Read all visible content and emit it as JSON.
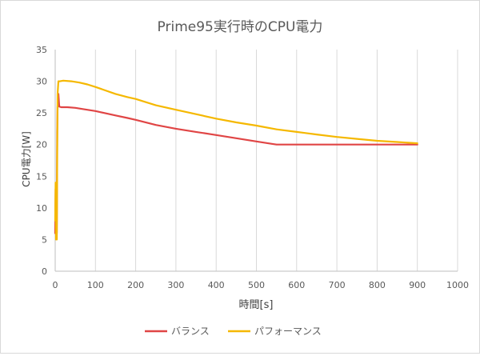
{
  "chart_data": {
    "type": "line",
    "title": "Prime95実行時のCPU電力",
    "xlabel": "時間[s]",
    "ylabel": "CPU電力[W]",
    "xlim": [
      0,
      1000
    ],
    "ylim": [
      0,
      35
    ],
    "x_ticks": [
      "0",
      "100",
      "200",
      "300",
      "400",
      "500",
      "600",
      "700",
      "800",
      "900",
      "1000"
    ],
    "y_ticks": [
      "0",
      "5",
      "10",
      "15",
      "20",
      "25",
      "30",
      "35"
    ],
    "grid": "vertical",
    "legend_position": "bottom",
    "series": [
      {
        "name": "バランス",
        "color": "#e04545",
        "points": [
          [
            0,
            6
          ],
          [
            1,
            13
          ],
          [
            2,
            7
          ],
          [
            3,
            11
          ],
          [
            4,
            6
          ],
          [
            5,
            22
          ],
          [
            6,
            26
          ],
          [
            8,
            28
          ],
          [
            10,
            26
          ],
          [
            15,
            25.9
          ],
          [
            30,
            25.9
          ],
          [
            50,
            25.8
          ],
          [
            70,
            25.6
          ],
          [
            100,
            25.3
          ],
          [
            150,
            24.6
          ],
          [
            180,
            24.2
          ],
          [
            200,
            23.9
          ],
          [
            250,
            23.1
          ],
          [
            300,
            22.5
          ],
          [
            350,
            22
          ],
          [
            400,
            21.5
          ],
          [
            450,
            21
          ],
          [
            500,
            20.5
          ],
          [
            540,
            20.1
          ],
          [
            550,
            20
          ],
          [
            600,
            20
          ],
          [
            700,
            20
          ],
          [
            800,
            20
          ],
          [
            900,
            20
          ]
        ]
      },
      {
        "name": "パフォーマンス",
        "color": "#f5b800",
        "points": [
          [
            0,
            8
          ],
          [
            1,
            14
          ],
          [
            2,
            5
          ],
          [
            3,
            9
          ],
          [
            4,
            5
          ],
          [
            5,
            18
          ],
          [
            6,
            28
          ],
          [
            8,
            30
          ],
          [
            12,
            30
          ],
          [
            20,
            30.1
          ],
          [
            40,
            30
          ],
          [
            60,
            29.8
          ],
          [
            80,
            29.5
          ],
          [
            100,
            29.1
          ],
          [
            150,
            28
          ],
          [
            180,
            27.5
          ],
          [
            200,
            27.2
          ],
          [
            250,
            26.2
          ],
          [
            300,
            25.5
          ],
          [
            350,
            24.8
          ],
          [
            400,
            24.1
          ],
          [
            450,
            23.5
          ],
          [
            500,
            23
          ],
          [
            550,
            22.4
          ],
          [
            600,
            22
          ],
          [
            650,
            21.6
          ],
          [
            700,
            21.2
          ],
          [
            750,
            20.9
          ],
          [
            800,
            20.6
          ],
          [
            850,
            20.4
          ],
          [
            900,
            20.2
          ]
        ]
      }
    ]
  }
}
